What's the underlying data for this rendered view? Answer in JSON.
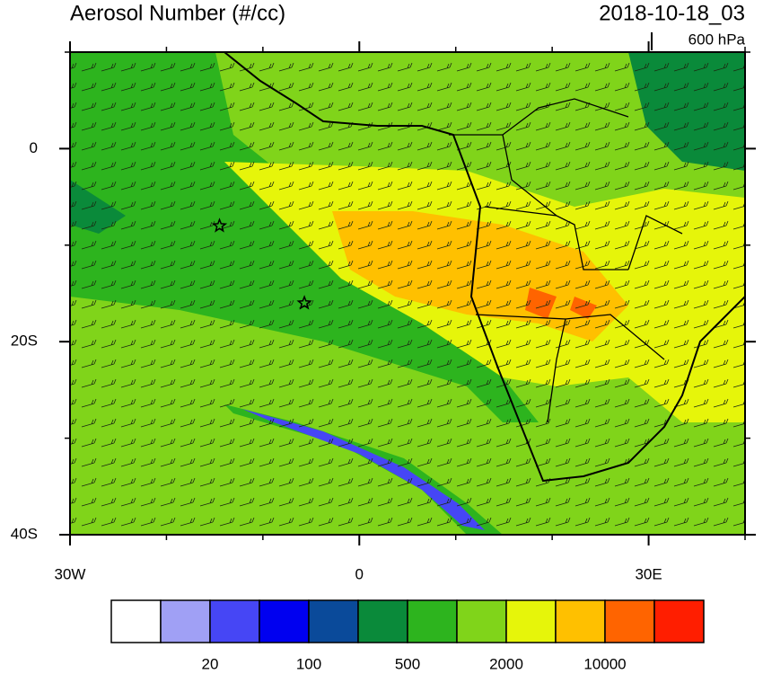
{
  "header": {
    "title": "Aerosol Number (#/cc)",
    "date": "2018-10-18_03",
    "level": "600 hPa"
  },
  "map": {
    "xlim": [
      -30,
      40
    ],
    "ylim": [
      -40,
      10
    ],
    "xticks": [
      {
        "value": -30,
        "label": "30W"
      },
      {
        "value": 0,
        "label": "0"
      },
      {
        "value": 30,
        "label": "30E"
      }
    ],
    "yticks": [
      {
        "value": 0,
        "label": "0"
      },
      {
        "value": -20,
        "label": "20S"
      },
      {
        "value": -40,
        "label": "40S"
      }
    ],
    "xminorticks": [
      -20,
      -10,
      10,
      20,
      40
    ],
    "yminorticks": [
      10,
      -10,
      -30
    ],
    "markers": [
      {
        "lon": -14.5,
        "lat": -8
      },
      {
        "lon": -5.7,
        "lat": -16
      }
    ]
  },
  "colorbar": {
    "colors": [
      "#ffffff",
      "#a0a0f5",
      "#4646f5",
      "#0000f0",
      "#0a4a9a",
      "#0a8a3a",
      "#2db41e",
      "#80d41a",
      "#e6f50a",
      "#ffc000",
      "#ff6400",
      "#ff1e00"
    ],
    "labels": [
      20,
      100,
      500,
      2000,
      10000
    ]
  }
}
